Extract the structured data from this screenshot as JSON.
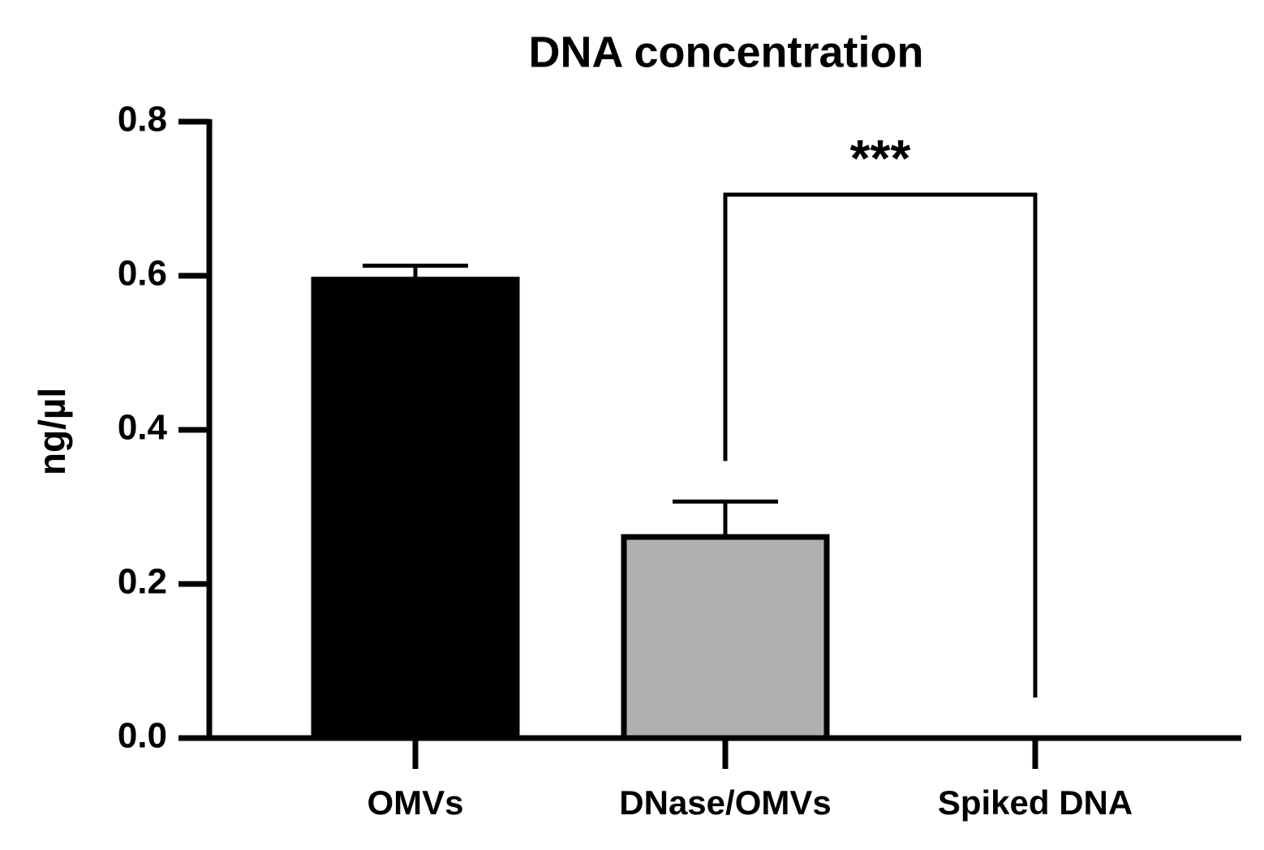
{
  "chart_data": {
    "type": "bar",
    "title": "DNA concentration",
    "ylabel": "ng/µl",
    "categories": [
      "OMVs",
      "DNase/OMVs",
      "Spiked DNA"
    ],
    "values": [
      0.595,
      0.261,
      0
    ],
    "errors": [
      0.018,
      0.046,
      0
    ],
    "colors": [
      "#000000",
      "#b0b0b0",
      "#ffffff"
    ],
    "ylim": [
      0,
      0.8
    ],
    "yticks": [
      {
        "value": 0,
        "label": "0.0"
      },
      0.2,
      0.4,
      0.6,
      0.8
    ],
    "annotations": [
      "***"
    ]
  }
}
